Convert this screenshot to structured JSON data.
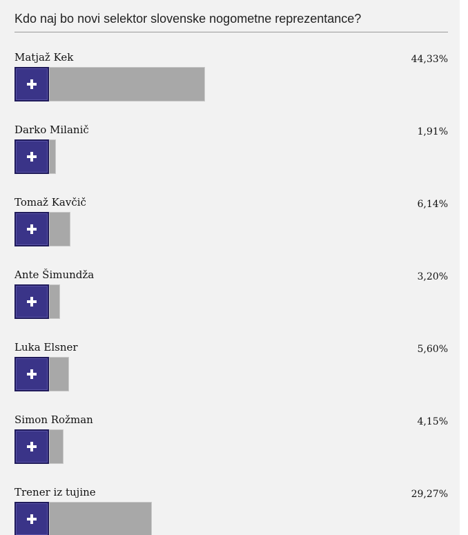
{
  "poll": {
    "question": "Kdo naj bo novi selektor slovenske nogometne reprezentance?",
    "options": [
      {
        "label": "Matjaž Kek",
        "percent_text": "44,33%",
        "share": 0.4433
      },
      {
        "label": "Darko Milanič",
        "percent_text": "1,91%",
        "share": 0.0191
      },
      {
        "label": "Tomaž Kavčič",
        "percent_text": "6,14%",
        "share": 0.0614
      },
      {
        "label": "Ante Šimundža",
        "percent_text": "3,20%",
        "share": 0.032
      },
      {
        "label": "Luka Elsner",
        "percent_text": "5,60%",
        "share": 0.056
      },
      {
        "label": "Simon Rožman",
        "percent_text": "4,15%",
        "share": 0.0415
      },
      {
        "label": "Trener iz tujine",
        "percent_text": "29,27%",
        "share": 0.2927
      }
    ],
    "vote_icon": "plus-icon",
    "colors": {
      "vote_button": "#3a3488",
      "result_bar": "#a8a8a8",
      "background": "#f2f2f2"
    }
  }
}
